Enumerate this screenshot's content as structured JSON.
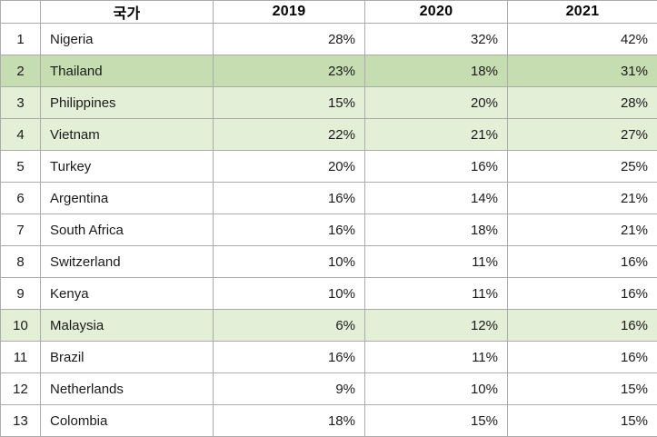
{
  "chart_data": {
    "type": "table",
    "title": "",
    "columns": [
      "",
      "국가",
      "2019",
      "2020",
      "2021"
    ],
    "rows": [
      {
        "rank": "1",
        "country": "Nigeria",
        "y2019": "28%",
        "y2020": "32%",
        "y2021": "42%",
        "highlight": "none"
      },
      {
        "rank": "2",
        "country": "Thailand",
        "y2019": "23%",
        "y2020": "18%",
        "y2021": "31%",
        "highlight": "dark"
      },
      {
        "rank": "3",
        "country": "Philippines",
        "y2019": "15%",
        "y2020": "20%",
        "y2021": "28%",
        "highlight": "light"
      },
      {
        "rank": "4",
        "country": "Vietnam",
        "y2019": "22%",
        "y2020": "21%",
        "y2021": "27%",
        "highlight": "light"
      },
      {
        "rank": "5",
        "country": "Turkey",
        "y2019": "20%",
        "y2020": "16%",
        "y2021": "25%",
        "highlight": "none"
      },
      {
        "rank": "6",
        "country": "Argentina",
        "y2019": "16%",
        "y2020": "14%",
        "y2021": "21%",
        "highlight": "none"
      },
      {
        "rank": "7",
        "country": "South Africa",
        "y2019": "16%",
        "y2020": "18%",
        "y2021": "21%",
        "highlight": "none"
      },
      {
        "rank": "8",
        "country": "Switzerland",
        "y2019": "10%",
        "y2020": "11%",
        "y2021": "16%",
        "highlight": "none"
      },
      {
        "rank": "9",
        "country": "Kenya",
        "y2019": "10%",
        "y2020": "11%",
        "y2021": "16%",
        "highlight": "none"
      },
      {
        "rank": "10",
        "country": "Malaysia",
        "y2019": "6%",
        "y2020": "12%",
        "y2021": "16%",
        "highlight": "light"
      },
      {
        "rank": "11",
        "country": "Brazil",
        "y2019": "16%",
        "y2020": "11%",
        "y2021": "16%",
        "highlight": "none"
      },
      {
        "rank": "12",
        "country": "Netherlands",
        "y2019": "9%",
        "y2020": "10%",
        "y2021": "15%",
        "highlight": "none"
      },
      {
        "rank": "13",
        "country": "Colombia",
        "y2019": "18%",
        "y2020": "15%",
        "y2021": "15%",
        "highlight": "none"
      }
    ],
    "colors": {
      "highlight_dark": "#c6ddb2",
      "highlight_light": "#e4efd8",
      "border": "#ababab",
      "header_text": "#000000",
      "cell_text": "#1a1a1a"
    }
  }
}
